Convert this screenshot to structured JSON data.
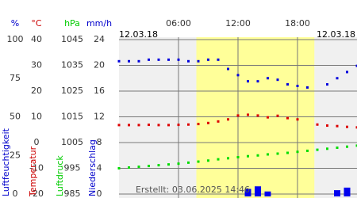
{
  "chart_data": {
    "type": "line",
    "date_left": "12.03.18",
    "date_right": "12.03.18",
    "footer": "Erstellt: 03.06.2025 14:46",
    "x": [
      0,
      1,
      2,
      3,
      4,
      5,
      6,
      7,
      8,
      9,
      10,
      11,
      12,
      13,
      14,
      15,
      16,
      17,
      18,
      19,
      20,
      21,
      22,
      23,
      24
    ],
    "xlim": [
      0,
      24
    ],
    "xticks": [
      {
        "value": 6,
        "label": "06:00"
      },
      {
        "value": 12,
        "label": "12:00"
      },
      {
        "value": 18,
        "label": "18:00"
      }
    ],
    "daylight": [
      7.8,
      19.7
    ],
    "grid": true,
    "axes": [
      {
        "unit": "%",
        "label": "Luftfeuchtigkeit",
        "color": "#0000cc",
        "ylim": [
          0,
          100
        ],
        "yticks": [
          0,
          25,
          50,
          75,
          100
        ]
      },
      {
        "unit": "°C",
        "label": "Temperatur",
        "color": "#cc0000",
        "ylim": [
          -20,
          40
        ],
        "yticks": [
          -20,
          -10,
          0,
          10,
          20,
          30,
          40
        ]
      },
      {
        "unit": "hPa",
        "label": "Luftdruck",
        "color": "#00cc00",
        "ylim": [
          985,
          1045
        ],
        "yticks": [
          985,
          995,
          1005,
          1015,
          1025,
          1035,
          1045
        ]
      },
      {
        "unit": "mm/h",
        "label": "Niederschlag",
        "color": "#0000cc",
        "ylim": [
          0,
          24
        ],
        "yticks": [
          0,
          4,
          8,
          12,
          16,
          20,
          24
        ]
      }
    ],
    "series": [
      {
        "axis": 0,
        "kind": "dots",
        "color": "#0000dd",
        "values": [
          86,
          86,
          86,
          87,
          87,
          87,
          87,
          86,
          86,
          87,
          87,
          81,
          77,
          73,
          73,
          75,
          74,
          71,
          70,
          69,
          null,
          71,
          75,
          79,
          83
        ]
      },
      {
        "axis": 1,
        "kind": "dots",
        "color": "#dd0000",
        "values": [
          6.8,
          6.8,
          6.8,
          6.9,
          6.8,
          6.8,
          6.9,
          7,
          7.2,
          7.6,
          8.2,
          9,
          10.5,
          10.8,
          10.5,
          9.8,
          10.4,
          9.5,
          9,
          null,
          7,
          6.6,
          6.4,
          6.1,
          5.9
        ]
      },
      {
        "axis": 2,
        "kind": "dots",
        "color": "#00dd00",
        "values": [
          995,
          995.3,
          995.6,
          995.9,
          996.2,
          996.5,
          996.8,
          997.2,
          997.6,
          998,
          998.5,
          998.9,
          999.3,
          999.7,
          1000,
          1000.4,
          1000.7,
          1001,
          1001.4,
          1001.8,
          1002.2,
          1002.6,
          1003,
          1003.4,
          1003.8
        ]
      },
      {
        "axis": 3,
        "kind": "bars",
        "color": "#0000ee",
        "values": [
          0,
          0,
          0,
          0,
          0,
          0,
          0,
          0,
          0,
          0,
          0,
          0,
          0,
          0.8,
          1.2,
          0.4,
          0,
          0,
          0,
          0,
          0,
          0,
          0.6,
          1.0,
          0
        ]
      }
    ]
  }
}
